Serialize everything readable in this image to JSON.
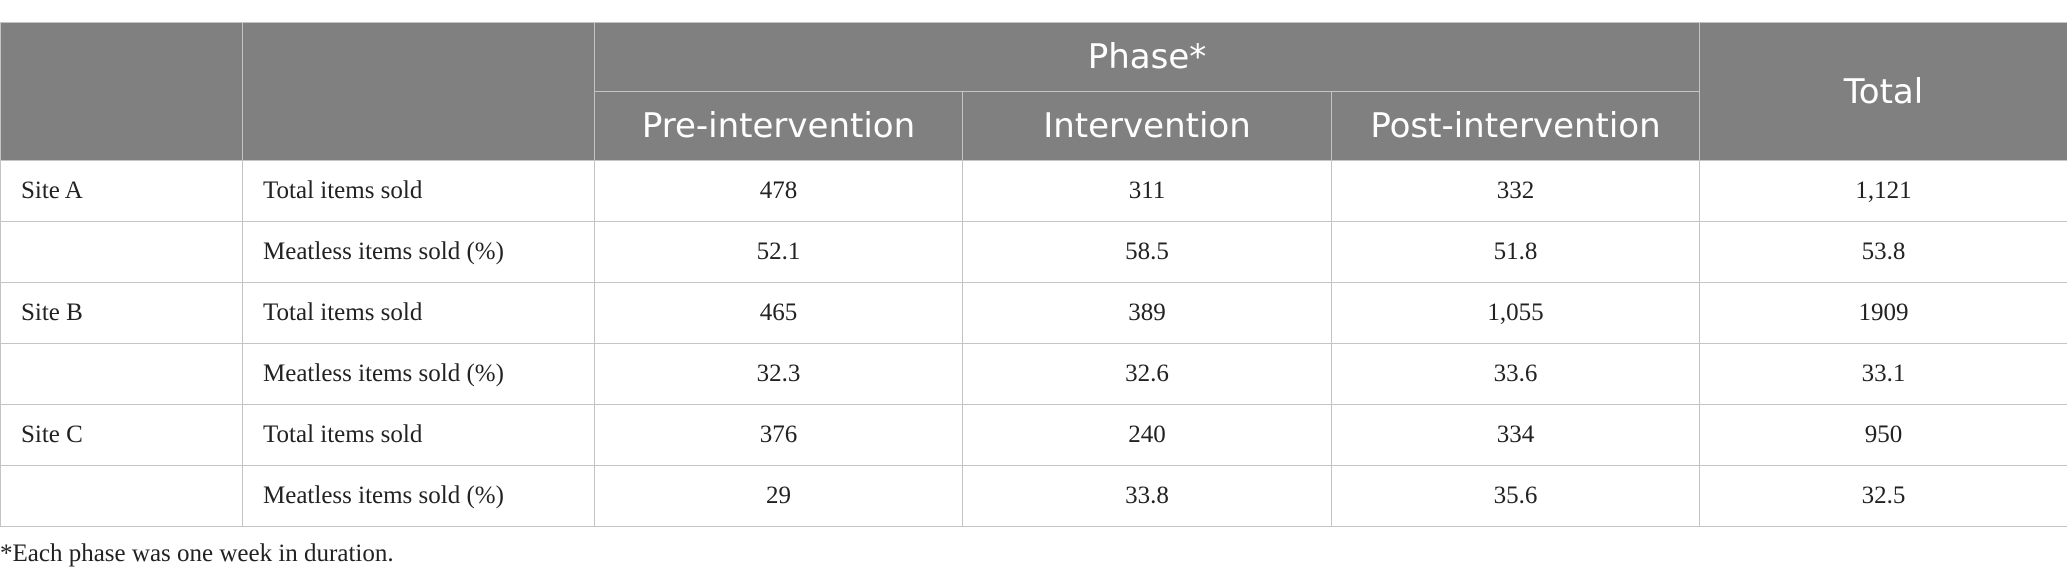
{
  "table": {
    "header": {
      "phase_label": "Phase*",
      "total_label": "Total",
      "phases": [
        "Pre-intervention",
        "Intervention",
        "Post-intervention"
      ]
    },
    "rows": [
      {
        "site": "Site A",
        "metric": "Total items sold",
        "values": [
          "478",
          "311",
          "332"
        ],
        "total": "1,121"
      },
      {
        "site": "",
        "metric": "Meatless items sold (%)",
        "values": [
          "52.1",
          "58.5",
          "51.8"
        ],
        "total": "53.8"
      },
      {
        "site": "Site B",
        "metric": "Total items sold",
        "values": [
          "465",
          "389",
          "1,055"
        ],
        "total": "1909"
      },
      {
        "site": "",
        "metric": "Meatless items sold (%)",
        "values": [
          "32.3",
          "32.6",
          "33.6"
        ],
        "total": "33.1"
      },
      {
        "site": "Site C",
        "metric": "Total items sold",
        "values": [
          "376",
          "240",
          "334"
        ],
        "total": "950"
      },
      {
        "site": "",
        "metric": "Meatless items sold (%)",
        "values": [
          "29",
          "33.8",
          "35.6"
        ],
        "total": "32.5"
      }
    ]
  },
  "footnote": "*Each phase was one week in duration.",
  "colors": {
    "header_bg": "#808080",
    "header_text": "#ffffff",
    "grid": "#c4c4c4"
  }
}
